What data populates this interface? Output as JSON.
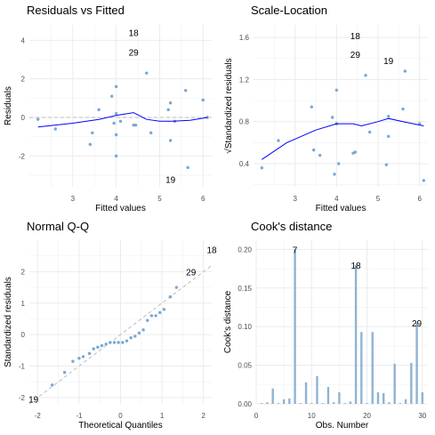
{
  "colors": {
    "point": "#6a9fd0",
    "bar": "#8fb3d3",
    "smooth": "#0000ff",
    "ref": "#bdbdbd",
    "grid": "#ebebeb"
  },
  "chart_data": [
    {
      "type": "scatter",
      "title": "Residuals vs Fitted",
      "xlabel": "Fitted values",
      "ylabel": "Residuals",
      "xlim": [
        2.0,
        6.2
      ],
      "ylim": [
        -3.6,
        4.8
      ],
      "xticks": [
        3,
        4,
        5,
        6
      ],
      "yticks": [
        -2,
        0,
        2,
        4
      ],
      "points": [
        [
          2.2,
          -0.1
        ],
        [
          2.6,
          -0.6
        ],
        [
          3.4,
          -1.4
        ],
        [
          3.45,
          -0.8
        ],
        [
          3.6,
          0.4
        ],
        [
          3.9,
          1.1
        ],
        [
          3.95,
          -0.3
        ],
        [
          4.0,
          1.6
        ],
        [
          4.0,
          0.2
        ],
        [
          4.0,
          -0.9
        ],
        [
          4.0,
          -2.0
        ],
        [
          4.1,
          -0.2
        ],
        [
          4.4,
          -0.4
        ],
        [
          4.45,
          -0.4
        ],
        [
          4.7,
          2.3
        ],
        [
          4.8,
          -0.8
        ],
        [
          5.2,
          0.4
        ],
        [
          5.25,
          0.75
        ],
        [
          5.25,
          -1.2
        ],
        [
          5.35,
          -0.2
        ],
        [
          5.6,
          1.4
        ],
        [
          5.65,
          -2.6
        ],
        [
          6.0,
          0.9
        ],
        [
          6.1,
          0.0
        ]
      ],
      "smooth": [
        [
          2.2,
          -0.5
        ],
        [
          3.0,
          -0.3
        ],
        [
          3.6,
          -0.1
        ],
        [
          4.0,
          0.1
        ],
        [
          4.4,
          0.25
        ],
        [
          4.7,
          -0.1
        ],
        [
          5.0,
          -0.2
        ],
        [
          5.3,
          -0.2
        ],
        [
          5.7,
          -0.15
        ],
        [
          6.1,
          0.0
        ]
      ],
      "reference": {
        "kind": "hline",
        "y": 0
      },
      "labels": [
        {
          "text": "18",
          "x": 4.4,
          "y": 4.4
        },
        {
          "text": "29",
          "x": 4.4,
          "y": 3.4
        },
        {
          "text": "19",
          "x": 5.25,
          "y": -3.2
        }
      ]
    },
    {
      "type": "scatter",
      "title": "Scale-Location",
      "xlabel": "Fitted values",
      "ylabel": "√Standardized residuals",
      "xlim": [
        2.0,
        6.2
      ],
      "ylim": [
        0.18,
        1.72
      ],
      "xticks": [
        3,
        4,
        5,
        6
      ],
      "yticks": [
        0.4,
        0.8,
        1.2,
        1.6
      ],
      "points": [
        [
          2.2,
          0.36
        ],
        [
          2.6,
          0.62
        ],
        [
          3.4,
          0.94
        ],
        [
          3.45,
          0.53
        ],
        [
          3.6,
          0.48
        ],
        [
          3.9,
          0.84
        ],
        [
          3.95,
          0.3
        ],
        [
          4.0,
          1.1
        ],
        [
          4.0,
          0.78
        ],
        [
          4.0,
          0.78
        ],
        [
          4.05,
          0.4
        ],
        [
          4.4,
          0.5
        ],
        [
          4.45,
          0.51
        ],
        [
          4.7,
          1.24
        ],
        [
          4.8,
          0.7
        ],
        [
          5.2,
          0.39
        ],
        [
          5.25,
          0.66
        ],
        [
          5.25,
          0.85
        ],
        [
          5.6,
          0.92
        ],
        [
          5.65,
          1.28
        ],
        [
          6.0,
          0.78
        ],
        [
          6.1,
          0.24
        ]
      ],
      "smooth": [
        [
          2.2,
          0.44
        ],
        [
          2.8,
          0.6
        ],
        [
          3.5,
          0.72
        ],
        [
          4.0,
          0.78
        ],
        [
          4.4,
          0.78
        ],
        [
          4.6,
          0.76
        ],
        [
          5.0,
          0.8
        ],
        [
          5.25,
          0.83
        ],
        [
          5.6,
          0.8
        ],
        [
          6.1,
          0.76
        ]
      ],
      "labels": [
        {
          "text": "18",
          "x": 4.45,
          "y": 1.62
        },
        {
          "text": "29",
          "x": 4.45,
          "y": 1.44
        },
        {
          "text": "19",
          "x": 5.25,
          "y": 1.38
        }
      ]
    },
    {
      "type": "scatter",
      "title": "Normal Q-Q",
      "xlabel": "Theoretical Quantiles",
      "ylabel": "Standardized residuals",
      "xlim": [
        -2.2,
        2.2
      ],
      "ylim": [
        -2.2,
        3.0
      ],
      "xticks": [
        -2,
        -1,
        0,
        1,
        2
      ],
      "yticks": [
        -2,
        -1,
        0,
        1,
        2
      ],
      "points": [
        [
          -1.65,
          -1.6
        ],
        [
          -1.35,
          -1.2
        ],
        [
          -1.15,
          -0.85
        ],
        [
          -1.0,
          -0.75
        ],
        [
          -0.9,
          -0.7
        ],
        [
          -0.75,
          -0.6
        ],
        [
          -0.65,
          -0.45
        ],
        [
          -0.55,
          -0.4
        ],
        [
          -0.45,
          -0.35
        ],
        [
          -0.35,
          -0.3
        ],
        [
          -0.25,
          -0.25
        ],
        [
          -0.15,
          -0.25
        ],
        [
          -0.05,
          -0.25
        ],
        [
          0.05,
          -0.25
        ],
        [
          0.15,
          -0.2
        ],
        [
          0.25,
          -0.1
        ],
        [
          0.35,
          -0.05
        ],
        [
          0.45,
          0.05
        ],
        [
          0.55,
          0.15
        ],
        [
          0.65,
          0.45
        ],
        [
          0.75,
          0.6
        ],
        [
          0.85,
          0.6
        ],
        [
          0.95,
          0.7
        ],
        [
          1.05,
          0.8
        ],
        [
          1.2,
          1.2
        ],
        [
          1.35,
          1.5
        ]
      ],
      "reference": {
        "kind": "line",
        "from": [
          -2.2,
          -2.2
        ],
        "to": [
          2.2,
          2.2
        ]
      },
      "labels": [
        {
          "text": "19",
          "x": -2.1,
          "y": -2.05
        },
        {
          "text": "29",
          "x": 1.7,
          "y": 2.0
        },
        {
          "text": "18",
          "x": 2.2,
          "y": 2.7
        }
      ]
    },
    {
      "type": "bar",
      "title": "Cook's distance",
      "xlabel": "Obs. Number",
      "ylabel": "Cook's distance",
      "xlim": [
        0,
        31
      ],
      "ylim": [
        0,
        0.212
      ],
      "xticks": [
        0,
        10,
        20,
        30
      ],
      "yticks": [
        0.0,
        0.05,
        0.1,
        0.15,
        0.2
      ],
      "x": [
        1,
        2,
        3,
        4,
        5,
        6,
        7,
        8,
        9,
        10,
        11,
        12,
        13,
        14,
        15,
        16,
        17,
        18,
        19,
        20,
        21,
        22,
        23,
        24,
        25,
        26,
        27,
        28,
        29,
        30
      ],
      "values": [
        0.001,
        0.002,
        0.02,
        0.001,
        0.006,
        0.007,
        0.2,
        0.001,
        0.028,
        0.001,
        0.036,
        0.001,
        0.022,
        0.002,
        0.015,
        0.001,
        0.003,
        0.18,
        0.093,
        0.001,
        0.093,
        0.015,
        0.014,
        0.002,
        0.052,
        0.001,
        0.006,
        0.053,
        0.105,
        0.015
      ],
      "labels": [
        {
          "text": "7",
          "x": 7,
          "y": 0.2
        },
        {
          "text": "18",
          "x": 18,
          "y": 0.18
        },
        {
          "text": "29",
          "x": 29,
          "y": 0.105
        }
      ]
    }
  ]
}
